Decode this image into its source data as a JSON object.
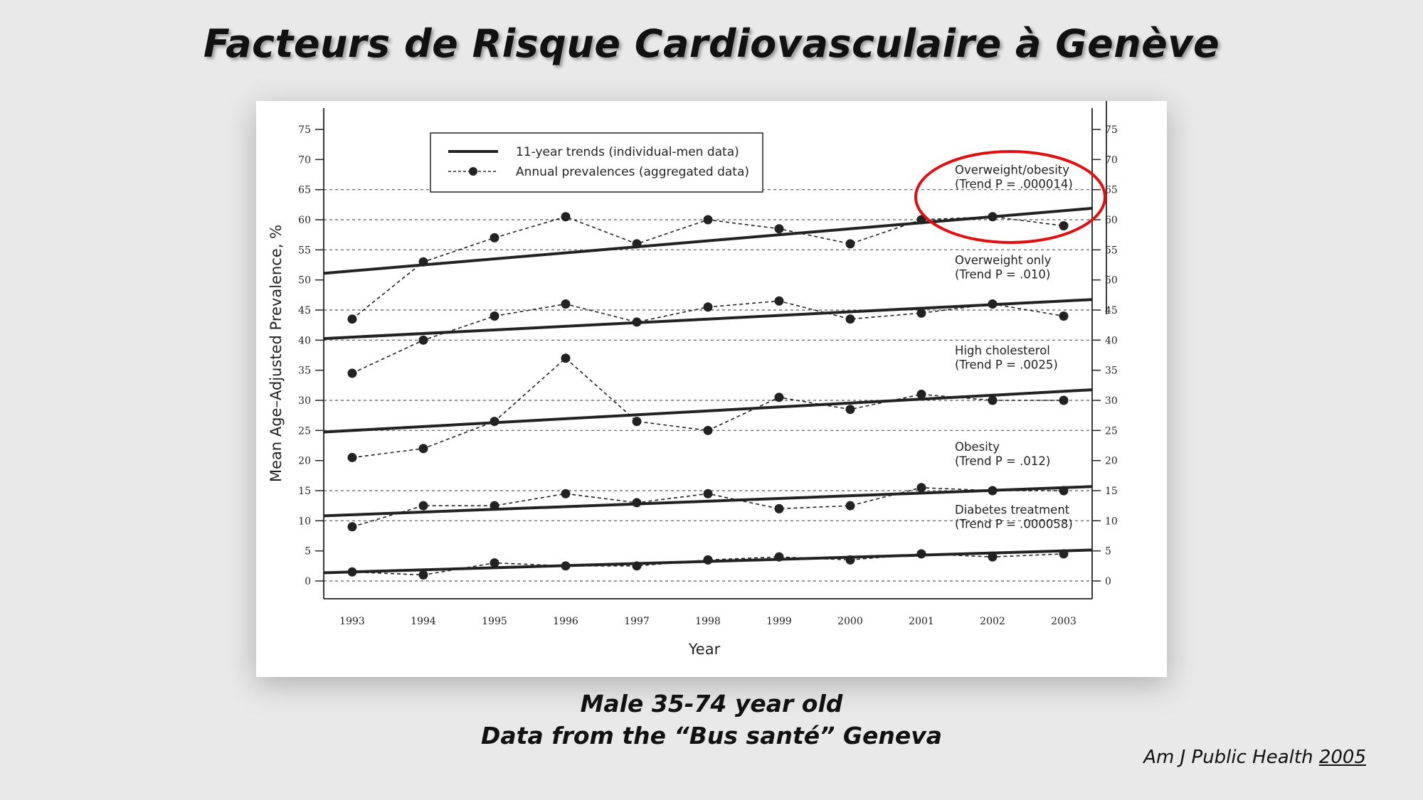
{
  "slide": {
    "title": "Facteurs de Risque Cardiovasculaire à Genève",
    "caption_line1": "Male 35-74 year old",
    "caption_line2": "Data from the “Bus santé” Geneva",
    "citation_journal": "Am J Public Health ",
    "citation_year": "2005"
  },
  "colors": {
    "highlight_circle": "#e01010",
    "line": "#222222"
  },
  "chart_data": {
    "type": "line",
    "title": "",
    "xlabel": "Year",
    "ylabel": "Mean Age–Adjusted Prevalence, %",
    "x": [
      1993,
      1994,
      1995,
      1996,
      1997,
      1998,
      1999,
      2000,
      2001,
      2002,
      2003
    ],
    "ylim": [
      0,
      75
    ],
    "yticks": [
      0,
      5,
      10,
      15,
      20,
      25,
      30,
      35,
      40,
      45,
      50,
      55,
      60,
      65,
      70,
      75
    ],
    "dashed_gridlines": [
      0,
      10,
      15,
      25,
      30,
      40,
      45,
      55,
      60,
      65
    ],
    "legend": {
      "placement": "top-left",
      "trend_label": "11-year trends (individual-men data)",
      "annual_label": "Annual prevalences (aggregated data)"
    },
    "series": [
      {
        "name": "Overweight/obesity",
        "annotation_line1": "Overweight/obesity",
        "annotation_line2": "(Trend P = .000014)",
        "annual": [
          43.5,
          53,
          57,
          60.5,
          56,
          60,
          58.5,
          56,
          60,
          60.5,
          59
        ],
        "trend": [
          51.5,
          61.5
        ],
        "highlighted": true
      },
      {
        "name": "Overweight only",
        "annotation_line1": "Overweight only",
        "annotation_line2": "(Trend P = .010)",
        "annual": [
          34.5,
          40,
          44,
          46,
          43,
          45.5,
          46.5,
          43.5,
          44.5,
          46,
          44
        ],
        "trend": [
          40.5,
          46.5
        ]
      },
      {
        "name": "High cholesterol",
        "annotation_line1": "High cholesterol",
        "annotation_line2": "(Trend P = .0025)",
        "annual": [
          20.5,
          22,
          26.5,
          37,
          26.5,
          25,
          30.5,
          28.5,
          31,
          30,
          30
        ],
        "trend": [
          25,
          31.5
        ]
      },
      {
        "name": "Obesity",
        "annotation_line1": "Obesity",
        "annotation_line2": "(Trend P = .012)",
        "annual": [
          9,
          12.5,
          12.5,
          14.5,
          13,
          14.5,
          12,
          12.5,
          15.5,
          15,
          15
        ],
        "trend": [
          11,
          15.5
        ]
      },
      {
        "name": "Diabetes treatment",
        "annotation_line1": "Diabetes treatment",
        "annotation_line2": "(Trend P = .000058)",
        "annual": [
          1.5,
          1,
          3,
          2.5,
          2.5,
          3.5,
          4,
          3.5,
          4.5,
          4,
          4.5
        ],
        "trend": [
          1.5,
          5
        ]
      }
    ]
  }
}
